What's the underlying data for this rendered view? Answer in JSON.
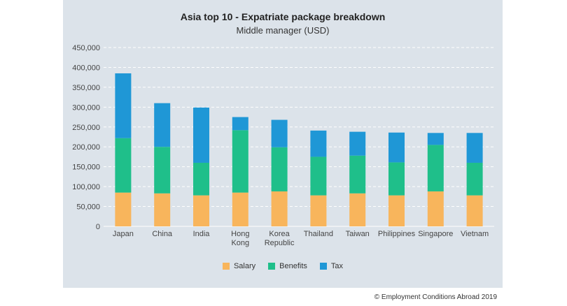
{
  "chart_data": {
    "type": "bar",
    "stacked": true,
    "title": "Asia top 10 - Expatriate package breakdown",
    "subtitle": "Middle manager (USD)",
    "categories": [
      "Japan",
      "China",
      "India",
      "Hong Kong",
      "Korea Republic",
      "Thailand",
      "Taiwan",
      "Philippines",
      "Singapore",
      "Vietnam"
    ],
    "series": [
      {
        "name": "Salary",
        "color": "#f8b55c",
        "values": [
          85000,
          83000,
          78000,
          85000,
          88000,
          78000,
          83000,
          78000,
          88000,
          78000
        ]
      },
      {
        "name": "Benefits",
        "color": "#1fbf8a",
        "values": [
          137000,
          117000,
          82000,
          157000,
          111000,
          97000,
          95000,
          83000,
          117000,
          82000
        ]
      },
      {
        "name": "Tax",
        "color": "#1f97d6",
        "values": [
          163000,
          110000,
          139000,
          33000,
          69000,
          66000,
          60000,
          75000,
          30000,
          75000
        ]
      }
    ],
    "ylim": [
      0,
      450000
    ],
    "yticks": [
      "0",
      "50,000",
      "100,000",
      "150,000",
      "200,000",
      "250,000",
      "300,000",
      "350,000",
      "400,000",
      "450,000"
    ],
    "grid": true,
    "legend_position": "bottom"
  },
  "footer": {
    "copyright": "© Employment Conditions Abroad 2019"
  }
}
